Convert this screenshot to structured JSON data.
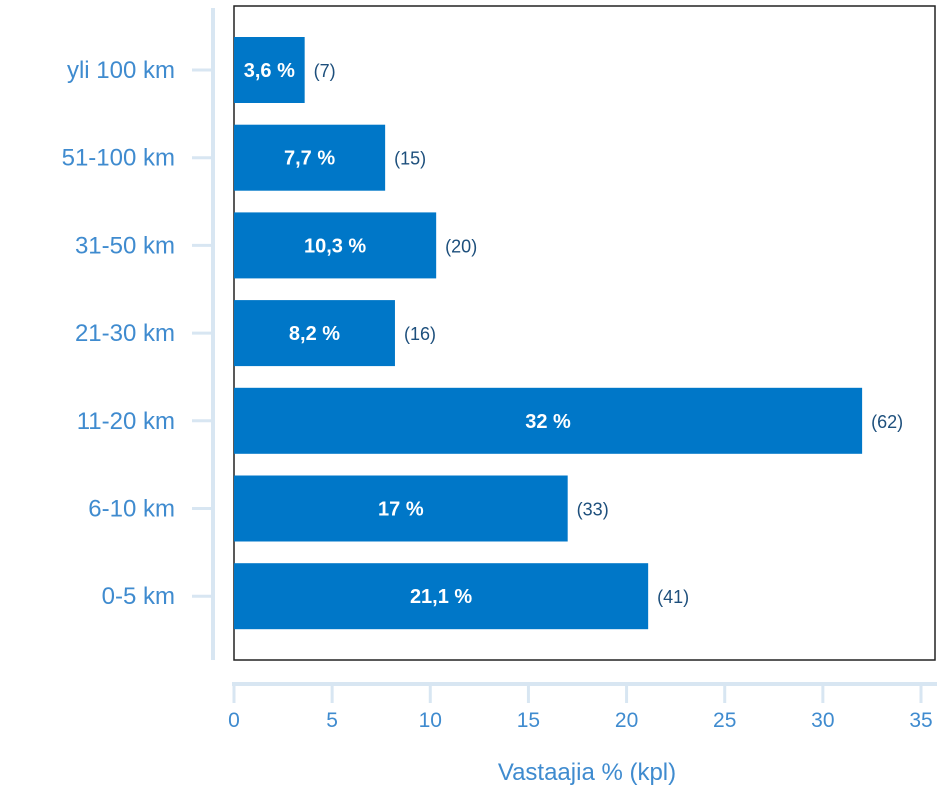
{
  "chart_data": {
    "type": "bar",
    "orientation": "horizontal",
    "categories": [
      "yli 100 km",
      "51-100 km",
      "31-50 km",
      "21-30 km",
      "11-20 km",
      "6-10 km",
      "0-5 km"
    ],
    "values": [
      3.6,
      7.7,
      10.3,
      8.2,
      32,
      17,
      21.1
    ],
    "value_labels": [
      "3,6 %",
      "7,7 %",
      "10,3 %",
      "8,2 %",
      "32 %",
      "17 %",
      "21,1 %"
    ],
    "count_labels": [
      "(7)",
      "(15)",
      "(20)",
      "(16)",
      "(62)",
      "(33)",
      "(41)"
    ],
    "xlabel": "Vastaajia % (kpl)",
    "ylabel": "",
    "title": "",
    "xlim": [
      0,
      35
    ],
    "xticks": [
      0,
      5,
      10,
      15,
      20,
      25,
      30,
      35
    ],
    "grid": false,
    "legend": "none",
    "colors": {
      "bar": "#0077c8",
      "axis": "#d8e6f2",
      "label_text": "#3f8bcf",
      "frame": "#222222",
      "count_text": "#1d4f7c"
    }
  }
}
